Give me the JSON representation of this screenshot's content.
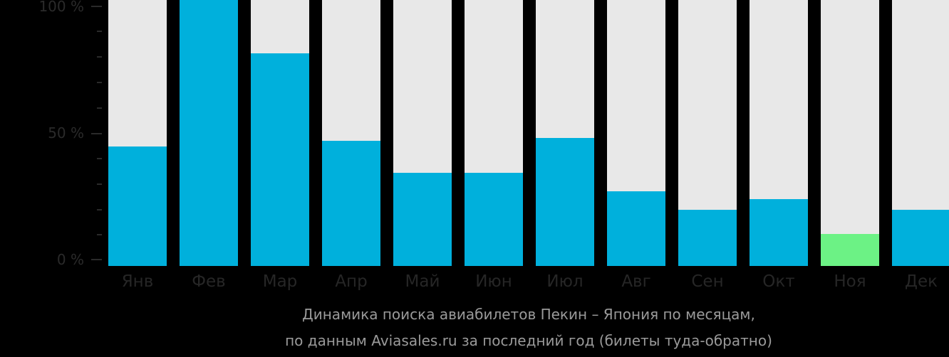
{
  "chart_data": {
    "type": "bar",
    "title": "Динамика поиска авиабилетов Пекин – Япония по месяцам,",
    "subtitle": "по данным Aviasales.ru за последний год (билеты туда-обратно)",
    "xlabel": "",
    "ylabel": "",
    "ylim": [
      0,
      100
    ],
    "y_ticks": [
      "0 %",
      "50 %",
      "100 %"
    ],
    "grid": false,
    "legend": null,
    "categories": [
      "Янв",
      "Фев",
      "Мар",
      "Апр",
      "Май",
      "Июн",
      "Июл",
      "Авг",
      "Сен",
      "Окт",
      "Ноя",
      "Дек"
    ],
    "values": [
      45,
      100,
      80,
      47,
      35,
      35,
      48,
      28,
      21,
      25,
      12,
      21
    ],
    "highlight_index": 10,
    "colors": {
      "bar": "#00b0dc",
      "highlight": "#6cf285",
      "track": "#e8e8e8",
      "background": "#000000"
    }
  },
  "axis": {
    "y_labels": {
      "top": "100 %",
      "mid": "50 %",
      "bottom": "0 %"
    }
  },
  "caption": {
    "line1": "Динамика поиска авиабилетов Пекин – Япония по месяцам,",
    "line2": "по данным Aviasales.ru за последний год (билеты туда-обратно)"
  }
}
